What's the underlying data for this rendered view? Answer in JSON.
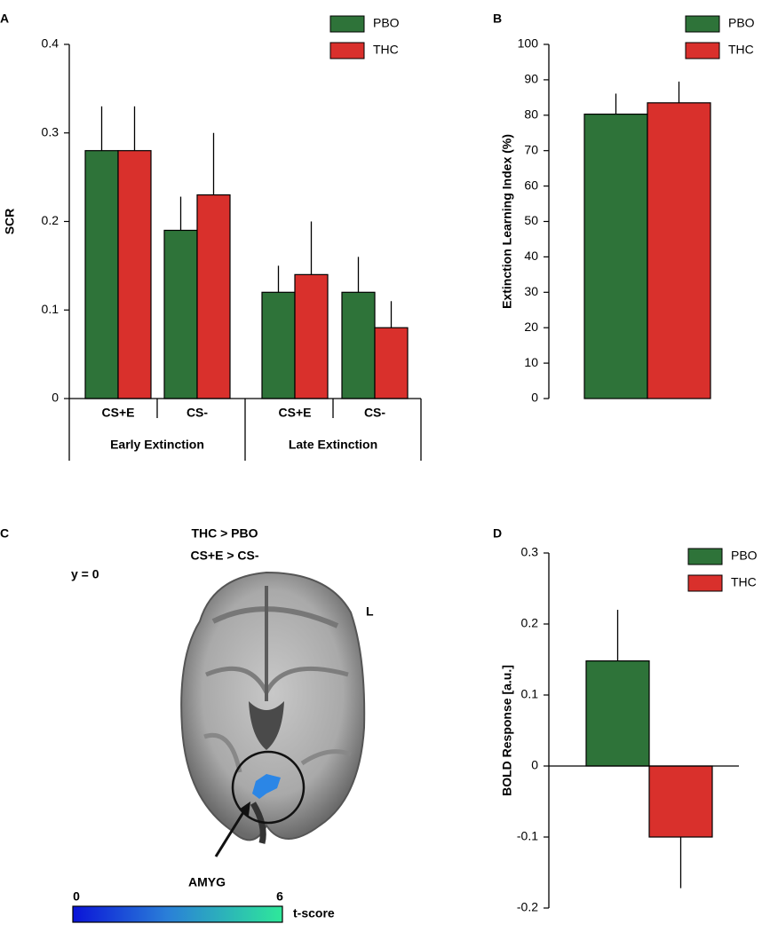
{
  "chart_data": [
    {
      "panel": "A",
      "type": "bar",
      "y_label": "SCR",
      "categories": [
        "CS+E",
        "CS-",
        "CS+E",
        "CS-"
      ],
      "groups": [
        "Early Extinction",
        "Late Extinction"
      ],
      "series": [
        {
          "name": "PBO",
          "color": "#2e7339",
          "values": [
            0.28,
            0.19,
            0.12,
            0.12
          ],
          "errors": [
            0.05,
            0.038,
            0.03,
            0.04
          ]
        },
        {
          "name": "THC",
          "color": "#d9302c",
          "values": [
            0.28,
            0.23,
            0.14,
            0.08
          ],
          "errors": [
            0.05,
            0.07,
            0.06,
            0.03
          ]
        }
      ],
      "ylim": [
        0,
        0.4
      ],
      "yticks": [
        0,
        0.1,
        0.2,
        0.3,
        0.4
      ],
      "legend": "top-right"
    },
    {
      "panel": "B",
      "type": "bar",
      "y_label": "Extinction Learning Index (%)",
      "categories": [
        null
      ],
      "series": [
        {
          "name": "PBO",
          "color": "#2e7339",
          "values": [
            80.3
          ],
          "errors": [
            5.8
          ]
        },
        {
          "name": "THC",
          "color": "#d9302c",
          "values": [
            83.5
          ],
          "errors": [
            6
          ]
        }
      ],
      "ylim": [
        0,
        100
      ],
      "yticks": [
        0,
        10,
        20,
        30,
        40,
        50,
        60,
        70,
        80,
        90,
        100
      ],
      "legend": "top-right"
    },
    {
      "panel": "C",
      "type": "image",
      "title": "THC > PBO",
      "subtitle": "CS+E > CS-",
      "annotations": [
        "y = 0",
        "L",
        "AMYG"
      ],
      "colorbar": {
        "label": "t-score",
        "lim": [
          0,
          6
        ],
        "ticks": [
          0,
          6
        ]
      }
    },
    {
      "panel": "D",
      "type": "bar",
      "y_label": "BOLD Response [a.u.]",
      "categories": [
        null
      ],
      "series": [
        {
          "name": "PBO",
          "color": "#2e7339",
          "values": [
            0.148
          ],
          "errors": [
            0.072
          ]
        },
        {
          "name": "THC",
          "color": "#d9302c",
          "values": [
            -0.1
          ],
          "errors": [
            0.072
          ]
        }
      ],
      "ylim": [
        -0.2,
        0.3
      ],
      "yticks": [
        -0.2,
        -0.1,
        0,
        0.1,
        0.2,
        0.3
      ],
      "legend": "top-right"
    }
  ]
}
